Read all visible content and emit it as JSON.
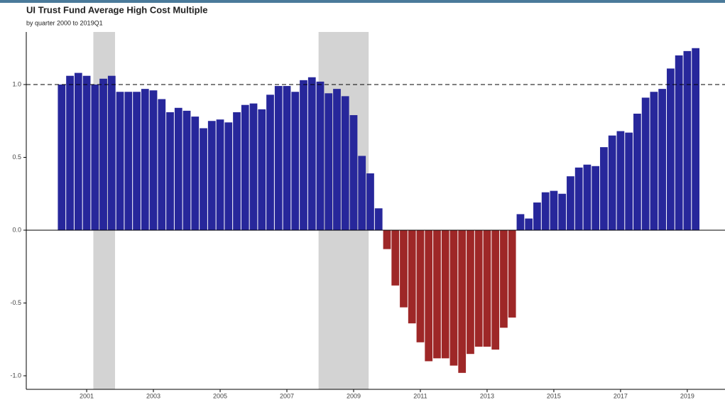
{
  "chart_data": {
    "type": "bar",
    "title": "UI Trust Fund Average High Cost Multiple",
    "subtitle": "by quarter 2000 to 2019Q1",
    "x": [
      2000.25,
      2000.5,
      2000.75,
      2001,
      2001.25,
      2001.5,
      2001.75,
      2002,
      2002.25,
      2002.5,
      2002.75,
      2003,
      2003.25,
      2003.5,
      2003.75,
      2004,
      2004.25,
      2004.5,
      2004.75,
      2005,
      2005.25,
      2005.5,
      2005.75,
      2006,
      2006.25,
      2006.5,
      2006.75,
      2007,
      2007.25,
      2007.5,
      2007.75,
      2008,
      2008.25,
      2008.5,
      2008.75,
      2009,
      2009.25,
      2009.5,
      2009.75,
      2010,
      2010.25,
      2010.5,
      2010.75,
      2011,
      2011.25,
      2011.5,
      2011.75,
      2012,
      2012.25,
      2012.5,
      2012.75,
      2013,
      2013.25,
      2013.5,
      2013.75,
      2014,
      2014.25,
      2014.5,
      2014.75,
      2015,
      2015.25,
      2015.5,
      2015.75,
      2016,
      2016.25,
      2016.5,
      2016.75,
      2017,
      2017.25,
      2017.5,
      2017.75,
      2018,
      2018.25,
      2018.5,
      2018.75,
      2019,
      2019.25
    ],
    "values": [
      1.0,
      1.06,
      1.08,
      1.06,
      1.0,
      1.04,
      1.06,
      0.95,
      0.95,
      0.95,
      0.97,
      0.96,
      0.9,
      0.81,
      0.84,
      0.82,
      0.78,
      0.7,
      0.75,
      0.76,
      0.74,
      0.81,
      0.86,
      0.87,
      0.83,
      0.93,
      0.99,
      0.99,
      0.95,
      1.03,
      1.05,
      1.02,
      0.94,
      0.97,
      0.92,
      0.79,
      0.51,
      0.39,
      0.15,
      -0.13,
      -0.38,
      -0.53,
      -0.64,
      -0.77,
      -0.9,
      -0.88,
      -0.88,
      -0.93,
      -0.98,
      -0.85,
      -0.8,
      -0.8,
      -0.82,
      -0.67,
      -0.6,
      0.11,
      0.08,
      0.19,
      0.26,
      0.27,
      0.25,
      0.37,
      0.43,
      0.45,
      0.44,
      0.57,
      0.65,
      0.68,
      0.67,
      0.8,
      0.91,
      0.95,
      0.97,
      1.11,
      1.2,
      1.23,
      1.25
    ],
    "color": "#27279b",
    "negative_color": "#9e2727",
    "xlim": [
      1999.19,
      2020.13
    ],
    "ylim": [
      -1.093,
      1.361
    ],
    "xticks": [
      2001,
      2003,
      2005,
      2007,
      2009,
      2011,
      2013,
      2015,
      2017,
      2019
    ],
    "yticks": [
      {
        "value": -1,
        "label": "-1.0"
      },
      {
        "value": -0.5,
        "label": "-0.5"
      },
      {
        "value": 0,
        "label": "0.0"
      },
      {
        "value": 0.5,
        "label": "0.5"
      },
      {
        "value": 1,
        "label": "1.0"
      }
    ],
    "hline": 1,
    "shaded_regions": [
      [
        2001.2,
        2001.85
      ],
      [
        2007.95,
        2009.45
      ]
    ]
  }
}
